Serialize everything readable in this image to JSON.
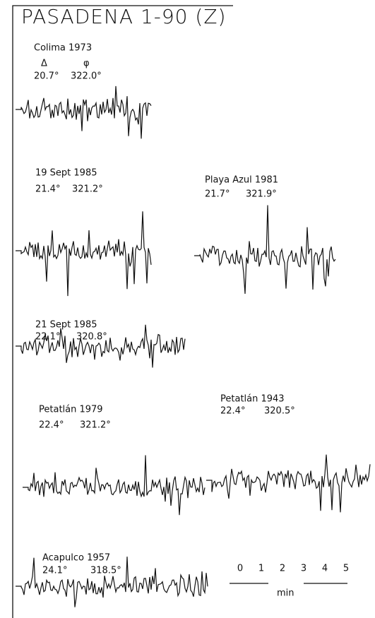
{
  "title": "PASADENA 1-90 (Z)",
  "column_headers": [
    "Δ",
    "φ"
  ],
  "records": [
    {
      "name": "Colima 1973",
      "delta": "20.7°",
      "phi": "322.0°"
    },
    {
      "name": "19 Sept 1985",
      "delta": "21.4°",
      "phi": "321.2°"
    },
    {
      "name": "Playa Azul 1981",
      "delta": "21.7°",
      "phi": "321.9°"
    },
    {
      "name": "21 Sept 1985",
      "delta": "22.1°",
      "phi": "320.8°"
    },
    {
      "name": "Petatlán 1979",
      "delta": "22.4°",
      "phi": "321.2°"
    },
    {
      "name": "Petatlán 1943",
      "delta": "22.4°",
      "phi": "320.5°"
    },
    {
      "name": "Acapulco 1957",
      "delta": "24.1°",
      "phi": "318.5°"
    }
  ],
  "scale": {
    "ticks": [
      "0",
      "1",
      "2",
      "3",
      "4",
      "5"
    ],
    "unit": "min"
  }
}
